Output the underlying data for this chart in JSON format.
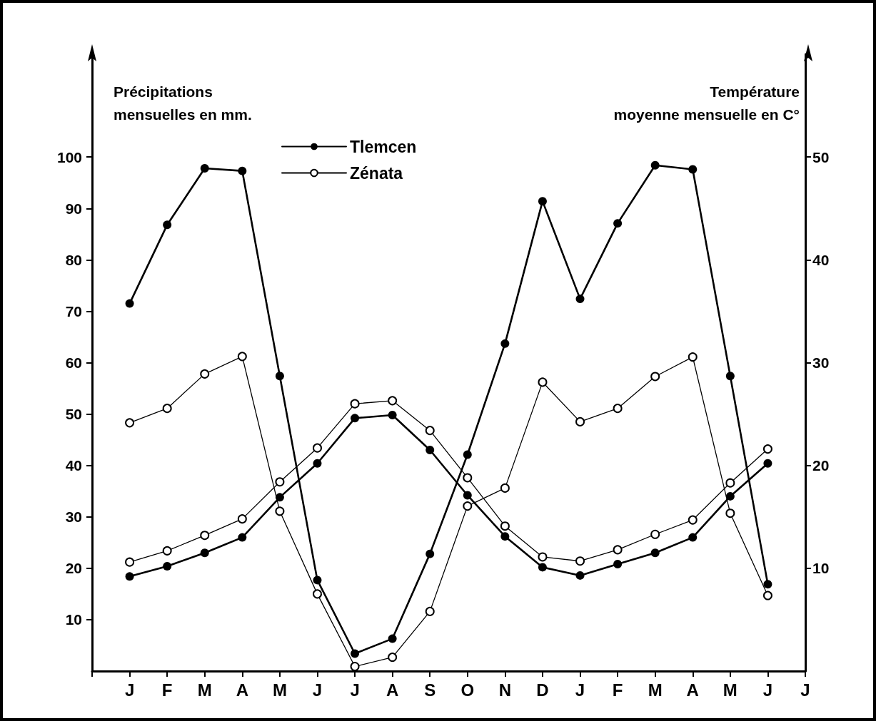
{
  "chart_data": {
    "type": "line",
    "categories": [
      null,
      "J",
      "F",
      "M",
      "A",
      "M",
      "J",
      "J",
      "A",
      "S",
      "O",
      "N",
      "D",
      "J",
      "F",
      "M",
      "A",
      "M",
      "J",
      "J"
    ],
    "ylabel": "Précipitations\nmensuelles en mm.",
    "y2label": "Température\nmoyenne mensuelle en C°",
    "ylim": [
      0,
      120
    ],
    "yticks": [
      10,
      20,
      30,
      40,
      50,
      60,
      70,
      80,
      90,
      100
    ],
    "y2lim": [
      0,
      60
    ],
    "y2ticks": [
      10,
      20,
      30,
      40,
      50
    ],
    "marker": "circle",
    "line_style": "solid",
    "grid": false,
    "legend": "top",
    "series": [
      {
        "name": "Tlemcen",
        "color": "#000000",
        "values": [
          null,
          71.5,
          86.8,
          97.8,
          97.3,
          57.4,
          17.7,
          3.4,
          6.3,
          22.8,
          42.1,
          63.7,
          91.4,
          72.4,
          87.1,
          98.4,
          97.6,
          57.4,
          16.9,
          null
        ]
      },
      {
        "name": "Zénata",
        "color": "#000000",
        "values": [
          null,
          48.3,
          51.1,
          57.8,
          61.2,
          31.1,
          15.0,
          0.9,
          2.7,
          11.6,
          32.1,
          35.6,
          56.2,
          48.5,
          51.1,
          57.3,
          61.1,
          30.7,
          14.7,
          null
        ]
      },
      {
        "color": "#000000",
        "axis": "y2",
        "values": [
          null,
          9.2,
          10.2,
          11.5,
          13.0,
          16.9,
          20.2,
          24.6,
          24.9,
          21.5,
          17.1,
          13.1,
          10.1,
          9.3,
          10.4,
          11.5,
          13.0,
          17.0,
          20.2,
          null
        ]
      },
      {
        "color": "#000000",
        "axis": "y2",
        "values": [
          null,
          10.6,
          11.7,
          13.2,
          14.8,
          18.4,
          21.7,
          26.0,
          26.3,
          23.4,
          18.8,
          14.1,
          11.1,
          10.7,
          11.8,
          13.3,
          14.7,
          18.3,
          21.6,
          null
        ]
      }
    ]
  }
}
